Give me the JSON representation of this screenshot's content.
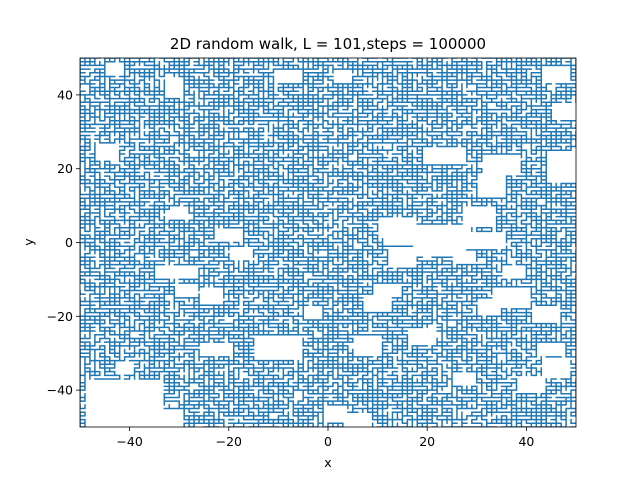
{
  "chart_data": {
    "type": "line",
    "title": "2D random walk, L = 101,steps = 100000",
    "xlabel": "x",
    "ylabel": "y",
    "xlim": [
      -50,
      50
    ],
    "ylim": [
      -50,
      50
    ],
    "xticks": [
      -40,
      -20,
      0,
      20,
      40
    ],
    "yticks": [
      -40,
      -20,
      0,
      20,
      40
    ],
    "xtick_labels": [
      "−40",
      "−20",
      "0",
      "20",
      "40"
    ],
    "ytick_labels": [
      "−40",
      "−20",
      "0",
      "20",
      "40"
    ],
    "grid": false,
    "legend": "none",
    "lattice_size": 101,
    "steps": 100000,
    "series": [
      {
        "color": "#1f77b4",
        "holes": [
          [
            -48,
            -34,
            -50,
            -38
          ],
          [
            -40,
            -30,
            -50,
            -46
          ],
          [
            -37,
            -34,
            -47,
            -43
          ],
          [
            -42,
            -40,
            -35,
            -33
          ],
          [
            -14,
            -6,
            -31,
            -26
          ],
          [
            -25,
            -20,
            -30,
            -28
          ],
          [
            -25,
            -22,
            -16,
            -13
          ],
          [
            -19,
            -16,
            -4,
            -2
          ],
          [
            -22,
            -18,
            1,
            3
          ],
          [
            -34,
            -27,
            -9,
            -7
          ],
          [
            -30,
            -27,
            -14,
            -12
          ],
          [
            -31,
            -29,
            7,
            9
          ],
          [
            -44,
            -42,
            46,
            48
          ],
          [
            -32,
            -30,
            40,
            44
          ],
          [
            -10,
            -6,
            44,
            46
          ],
          [
            2,
            4,
            44,
            46
          ],
          [
            6,
            10,
            -30,
            -26
          ],
          [
            8,
            12,
            -18,
            -15
          ],
          [
            10,
            14,
            -14,
            -12
          ],
          [
            0,
            3,
            -48,
            -45
          ],
          [
            4,
            8,
            -50,
            -47
          ],
          [
            11,
            17,
            2,
            6
          ],
          [
            12,
            28,
            0,
            4
          ],
          [
            13,
            17,
            -6,
            -2
          ],
          [
            18,
            27,
            -3,
            1
          ],
          [
            26,
            35,
            -1,
            2
          ],
          [
            26,
            29,
            -5,
            -3
          ],
          [
            28,
            33,
            5,
            9
          ],
          [
            20,
            27,
            22,
            25
          ],
          [
            31,
            35,
            13,
            18
          ],
          [
            32,
            38,
            19,
            23
          ],
          [
            31,
            34,
            -19,
            -16
          ],
          [
            34,
            40,
            -17,
            -13
          ],
          [
            36,
            39,
            -9,
            -7
          ],
          [
            42,
            46,
            -21,
            -18
          ],
          [
            43,
            47,
            -30,
            -28
          ],
          [
            39,
            43,
            -40,
            -37
          ],
          [
            44,
            48,
            -36,
            -32
          ],
          [
            45,
            50,
            17,
            24
          ],
          [
            46,
            50,
            34,
            37
          ],
          [
            44,
            48,
            44,
            47
          ],
          [
            17,
            21,
            -27,
            -24
          ],
          [
            26,
            29,
            -38,
            -36
          ],
          [
            -46,
            -43,
            23,
            26
          ],
          [
            -4,
            -2,
            -20,
            -18
          ]
        ]
      }
    ]
  }
}
